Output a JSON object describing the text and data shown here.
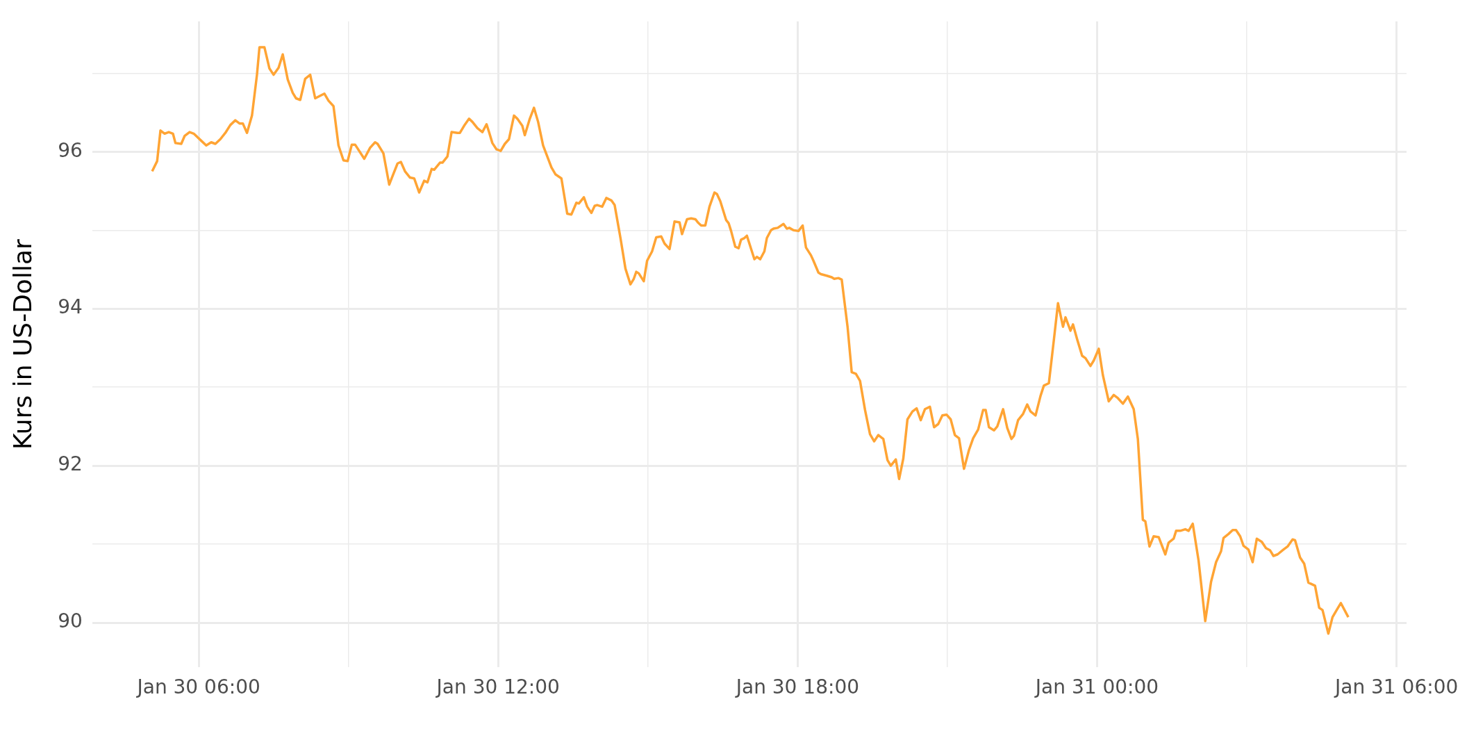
{
  "chart_data": {
    "type": "line",
    "ylabel": "Kurs in US-Dollar",
    "color": "#ffa434",
    "grid": true,
    "legend": false,
    "xlim": [
      "--01-30T03:52",
      "--01-31T06:12"
    ],
    "ylim": [
      89.43,
      97.66
    ],
    "xticks": [
      {
        "value": "--01-30T06:00",
        "label": "Jan 30 06:00"
      },
      {
        "value": "--01-30T09:00",
        "label": null
      },
      {
        "value": "--01-30T12:00",
        "label": "Jan 30 12:00"
      },
      {
        "value": "--01-30T15:00",
        "label": null
      },
      {
        "value": "--01-30T18:00",
        "label": "Jan 30 18:00"
      },
      {
        "value": "--01-30T21:00",
        "label": null
      },
      {
        "value": "--01-31T00:00",
        "label": "Jan 31 00:00"
      },
      {
        "value": "--01-31T03:00",
        "label": null
      },
      {
        "value": "--01-31T06:00",
        "label": "Jan 31 06:00"
      }
    ],
    "yticks": [
      90,
      {
        "value": 91,
        "label": null
      },
      92,
      {
        "value": 93,
        "label": null
      },
      94,
      {
        "value": 95,
        "label": null
      },
      96,
      {
        "value": 97,
        "label": null
      }
    ],
    "x": [
      "--01-30T05:04",
      "--01-30T05:10",
      "--01-30T05:14",
      "--01-30T05:19",
      "--01-30T05:24",
      "--01-30T05:29",
      "--01-30T05:32",
      "--01-30T05:39",
      "--01-30T05:43",
      "--01-30T05:49",
      "--01-30T05:54",
      "--01-30T06:04",
      "--01-30T06:09",
      "--01-30T06:15",
      "--01-30T06:20",
      "--01-30T06:26",
      "--01-30T06:32",
      "--01-30T06:38",
      "--01-30T06:44",
      "--01-30T06:49",
      "--01-30T06:53",
      "--01-30T06:58",
      "--01-30T07:04",
      "--01-30T07:10",
      "--01-30T07:13",
      "--01-30T07:19",
      "--01-30T07:25",
      "--01-30T07:30",
      "--01-30T07:36",
      "--01-30T07:41",
      "--01-30T07:47",
      "--01-30T07:53",
      "--01-30T07:57",
      "--01-30T08:02",
      "--01-30T08:08",
      "--01-30T08:14",
      "--01-30T08:20",
      "--01-30T08:31",
      "--01-30T08:36",
      "--01-30T08:42",
      "--01-30T08:48",
      "--01-30T08:54",
      "--01-30T08:59",
      "--01-30T09:04",
      "--01-30T09:08",
      "--01-30T09:19",
      "--01-30T09:26",
      "--01-30T09:32",
      "--01-30T09:35",
      "--01-30T09:42",
      "--01-30T09:49",
      "--01-30T09:53",
      "--01-30T09:59",
      "--01-30T10:03",
      "--01-30T10:08",
      "--01-30T10:14",
      "--01-30T10:19",
      "--01-30T10:25",
      "--01-30T10:31",
      "--01-30T10:35",
      "--01-30T10:40",
      "--01-30T10:43",
      "--01-30T10:50",
      "--01-30T10:53",
      "--01-30T10:59",
      "--01-30T11:04",
      "--01-30T11:11",
      "--01-30T11:14",
      "--01-30T11:19",
      "--01-30T11:25",
      "--01-30T11:29",
      "--01-30T11:35",
      "--01-30T11:41",
      "--01-30T11:46",
      "--01-30T11:49",
      "--01-30T11:53",
      "--01-30T11:58",
      "--01-30T12:03",
      "--01-30T12:08",
      "--01-30T12:13",
      "--01-30T12:19",
      "--01-30T12:23",
      "--01-30T12:29",
      "--01-30T12:32",
      "--01-30T12:38",
      "--01-30T12:43",
      "--01-30T12:48",
      "--01-30T12:54",
      "--01-30T12:59",
      "--01-30T13:04",
      "--01-30T13:09",
      "--01-30T13:16",
      "--01-30T13:23",
      "--01-30T13:28",
      "--01-30T13:34",
      "--01-30T13:37",
      "--01-30T13:43",
      "--01-30T13:47",
      "--01-30T13:52",
      "--01-30T13:56",
      "--01-30T13:59",
      "--01-30T14:05",
      "--01-30T14:10",
      "--01-30T14:16",
      "--01-30T14:20",
      "--01-30T14:27",
      "--01-30T14:33",
      "--01-30T14:39",
      "--01-30T14:43",
      "--01-30T14:46",
      "--01-30T14:49",
      "--01-30T14:55",
      "--01-30T14:59",
      "--01-30T15:05",
      "--01-30T15:10",
      "--01-30T15:16",
      "--01-30T15:20",
      "--01-30T15:26",
      "--01-30T15:32",
      "--01-30T15:38",
      "--01-30T15:41",
      "--01-30T15:47",
      "--01-30T15:52",
      "--01-30T15:57",
      "--01-30T16:00",
      "--01-30T16:04",
      "--01-30T16:09",
      "--01-30T16:14",
      "--01-30T16:20",
      "--01-30T16:23",
      "--01-30T16:27",
      "--01-30T16:34",
      "--01-30T16:37",
      "--01-30T16:40",
      "--01-30T16:45",
      "--01-30T16:49",
      "--01-30T16:52",
      "--01-30T16:56",
      "--01-30T16:59",
      "--01-30T17:05",
      "--01-30T17:08",
      "--01-30T17:11",
      "--01-30T17:15",
      "--01-30T17:20",
      "--01-30T17:23",
      "--01-30T17:28",
      "--01-30T17:31",
      "--01-30T17:36",
      "--01-30T17:43",
      "--01-30T17:47",
      "--01-30T17:50",
      "--01-30T17:55",
      "--01-30T18:01",
      "--01-30T18:06",
      "--01-30T18:10",
      "--01-30T18:16",
      "--01-30T18:19",
      "--01-30T18:25",
      "--01-30T18:28",
      "--01-30T18:35",
      "--01-30T18:41",
      "--01-30T18:44",
      "--01-30T18:49",
      "--01-30T18:53",
      "--01-30T19:00",
      "--01-30T19:05",
      "--01-30T19:10",
      "--01-30T19:15",
      "--01-30T19:21",
      "--01-30T19:27",
      "--01-30T19:32",
      "--01-30T19:37",
      "--01-30T19:43",
      "--01-30T19:48",
      "--01-30T19:52",
      "--01-30T19:58",
      "--01-30T20:02",
      "--01-30T20:07",
      "--01-30T20:12",
      "--01-30T20:18",
      "--01-30T20:23",
      "--01-30T20:28",
      "--01-30T20:33",
      "--01-30T20:39",
      "--01-30T20:44",
      "--01-30T20:49",
      "--01-30T20:54",
      "--01-30T20:59",
      "--01-30T21:04",
      "--01-30T21:09",
      "--01-30T21:14",
      "--01-30T21:20",
      "--01-30T21:26",
      "--01-30T21:31",
      "--01-30T21:37",
      "--01-30T21:43",
      "--01-30T21:46",
      "--01-30T21:50",
      "--01-30T21:56",
      "--01-30T22:00",
      "--01-30T22:07",
      "--01-30T22:12",
      "--01-30T22:17",
      "--01-30T22:20",
      "--01-30T22:25",
      "--01-30T22:31",
      "--01-30T22:36",
      "--01-30T22:40",
      "--01-30T22:46",
      "--01-30T22:52",
      "--01-30T22:56",
      "--01-30T23:02",
      "--01-30T23:08",
      "--01-30T23:13",
      "--01-30T23:19",
      "--01-30T23:22",
      "--01-30T23:28",
      "--01-30T23:31",
      "--01-30T23:36",
      "--01-30T23:42",
      "--01-30T23:46",
      "--01-30T23:52",
      "--01-30T23:56",
      "--01-31T00:02",
      "--01-31T00:07",
      "--01-31T00:14",
      "--01-31T00:20",
      "--01-31T00:25",
      "--01-31T00:31",
      "--01-31T00:37",
      "--01-31T00:44",
      "--01-31T00:49",
      "--01-31T00:55",
      "--01-31T00:58",
      "--01-31T01:03",
      "--01-31T01:08",
      "--01-31T01:14",
      "--01-31T01:22",
      "--01-31T01:26",
      "--01-31T01:32",
      "--01-31T01:35",
      "--01-31T01:40",
      "--01-31T01:46",
      "--01-31T01:50",
      "--01-31T01:55",
      "--01-31T02:02",
      "--01-31T02:10",
      "--01-31T02:17",
      "--01-31T02:23",
      "--01-31T02:29",
      "--01-31T02:32",
      "--01-31T02:38",
      "--01-31T02:43",
      "--01-31T02:47",
      "--01-31T02:52",
      "--01-31T02:56",
      "--01-31T03:02",
      "--01-31T03:07",
      "--01-31T03:12",
      "--01-31T03:18",
      "--01-31T03:23",
      "--01-31T03:28",
      "--01-31T03:32",
      "--01-31T03:37",
      "--01-31T03:44",
      "--01-31T03:49",
      "--01-31T03:55",
      "--01-31T03:58",
      "--01-31T04:04",
      "--01-31T04:09",
      "--01-31T04:14",
      "--01-31T04:22",
      "--01-31T04:27",
      "--01-31T04:31",
      "--01-31T04:38",
      "--01-31T04:43",
      "--01-31T04:48",
      "--01-31T04:53",
      "--01-31T04:59",
      "--01-31T05:02"
    ],
    "values": [
      95.75,
      95.88,
      96.27,
      96.23,
      96.25,
      96.23,
      96.11,
      96.1,
      96.2,
      96.25,
      96.23,
      96.13,
      96.08,
      96.12,
      96.1,
      96.16,
      96.24,
      96.34,
      96.4,
      96.36,
      96.36,
      96.24,
      96.46,
      96.98,
      97.33,
      97.33,
      97.06,
      96.98,
      97.07,
      97.24,
      96.92,
      96.75,
      96.68,
      96.66,
      96.93,
      96.98,
      96.68,
      96.74,
      96.65,
      96.58,
      96.08,
      95.89,
      95.88,
      96.09,
      96.09,
      95.91,
      96.05,
      96.12,
      96.1,
      95.98,
      95.58,
      95.69,
      95.85,
      95.87,
      95.75,
      95.67,
      95.66,
      95.48,
      95.63,
      95.61,
      95.78,
      95.77,
      95.86,
      95.86,
      95.94,
      96.25,
      96.24,
      96.24,
      96.33,
      96.42,
      96.38,
      96.3,
      96.25,
      96.35,
      96.25,
      96.11,
      96.03,
      96.01,
      96.1,
      96.16,
      96.46,
      96.42,
      96.33,
      96.21,
      96.42,
      96.56,
      96.38,
      96.08,
      95.94,
      95.8,
      95.71,
      95.66,
      95.21,
      95.2,
      95.35,
      95.34,
      95.42,
      95.3,
      95.22,
      95.31,
      95.32,
      95.3,
      95.41,
      95.38,
      95.32,
      94.9,
      94.51,
      94.31,
      94.38,
      94.47,
      94.45,
      94.35,
      94.61,
      94.73,
      94.91,
      94.92,
      94.83,
      94.76,
      95.11,
      95.1,
      94.95,
      95.14,
      95.15,
      95.14,
      95.1,
      95.06,
      95.06,
      95.3,
      95.48,
      95.46,
      95.37,
      95.13,
      95.09,
      94.99,
      94.79,
      94.77,
      94.88,
      94.9,
      94.93,
      94.73,
      94.63,
      94.66,
      94.63,
      94.73,
      94.9,
      95.0,
      95.02,
      95.03,
      95.08,
      95.02,
      95.03,
      95.0,
      94.99,
      95.06,
      94.78,
      94.68,
      94.61,
      94.46,
      94.44,
      94.42,
      94.4,
      94.38,
      94.39,
      94.37,
      93.77,
      93.19,
      93.17,
      93.08,
      92.71,
      92.4,
      92.31,
      92.39,
      92.34,
      92.07,
      92.0,
      92.08,
      91.83,
      92.09,
      92.59,
      92.69,
      92.73,
      92.58,
      92.72,
      92.75,
      92.49,
      92.53,
      92.64,
      92.65,
      92.59,
      92.39,
      92.35,
      91.96,
      92.2,
      92.35,
      92.46,
      92.71,
      92.71,
      92.49,
      92.45,
      92.5,
      92.72,
      92.48,
      92.34,
      92.38,
      92.58,
      92.66,
      92.78,
      92.69,
      92.64,
      92.89,
      93.02,
      93.05,
      93.6,
      94.07,
      93.77,
      93.89,
      93.72,
      93.8,
      93.61,
      93.4,
      93.37,
      93.27,
      93.34,
      93.49,
      93.15,
      92.82,
      92.9,
      92.86,
      92.79,
      92.88,
      92.72,
      92.34,
      91.31,
      91.29,
      90.97,
      91.1,
      91.09,
      90.87,
      91.02,
      91.07,
      91.17,
      91.17,
      91.19,
      91.17,
      91.26,
      90.79,
      90.02,
      90.52,
      90.77,
      90.91,
      91.08,
      91.13,
      91.18,
      91.18,
      91.1,
      90.98,
      90.93,
      90.77,
      91.07,
      91.03,
      90.95,
      90.92,
      90.85,
      90.87,
      90.93,
      90.97,
      91.06,
      91.05,
      90.83,
      90.75,
      90.51,
      90.47,
      90.19,
      90.16,
      89.86,
      90.07,
      90.16,
      90.25,
      90.13,
      90.07
    ]
  }
}
